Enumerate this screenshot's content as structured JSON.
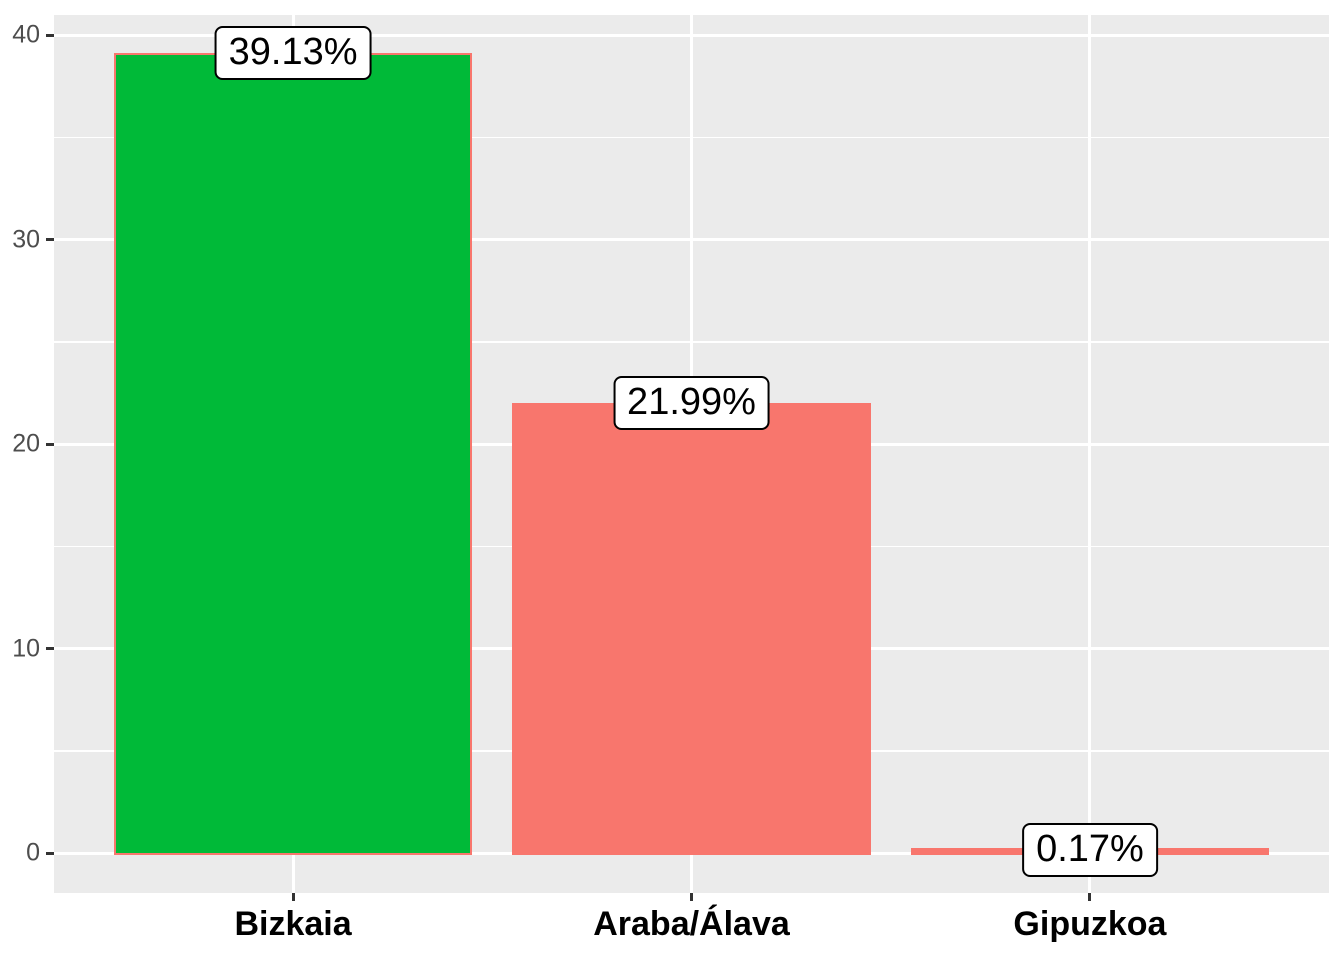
{
  "chart_data": {
    "type": "bar",
    "title": "",
    "xlabel": "",
    "ylabel": "",
    "categories": [
      "Bizkaia",
      "Araba/Álava",
      "Gipuzkoa"
    ],
    "values": [
      39.13,
      21.99,
      0.17
    ],
    "bar_labels": [
      "39.13%",
      "21.99%",
      "0.17%"
    ],
    "bar_fills": [
      "#00BA38",
      "#F8766D",
      "#F8766D"
    ],
    "bar_stroke": "#F8766D",
    "ylim": [
      0,
      40
    ],
    "y_ticks": [
      0,
      10,
      20,
      30,
      40
    ],
    "y_minor_ticks": [
      5,
      15,
      25,
      35
    ],
    "grid": true,
    "legend": "none",
    "colors": {
      "panel_background": "#EBEBEB",
      "grid_major": "#FFFFFF",
      "grid_minor": "#FFFFFF",
      "axis_text_y": "#4D4D4D",
      "axis_text_x": "#000000",
      "tick_mark": "#333333",
      "label_box_background": "#FFFFFF",
      "label_box_border": "#000000",
      "label_text": "#000000"
    }
  }
}
